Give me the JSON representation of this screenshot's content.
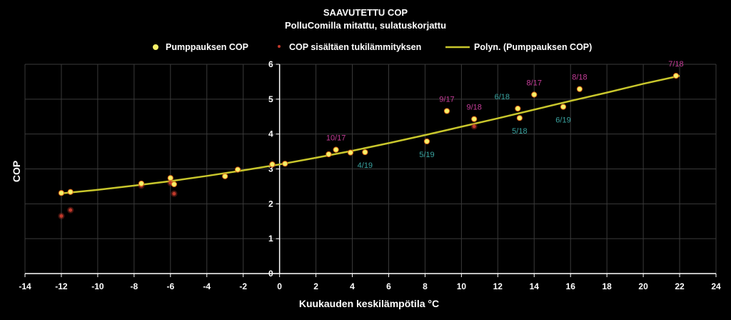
{
  "chart_data": {
    "type": "scatter",
    "title": "SAAVUTETTU COP",
    "subtitle": "PolluComilla mitattu, sulatuskorjattu",
    "xlabel": "Kuukauden keskilämpötila °C",
    "ylabel": "COP",
    "xlim": [
      -14,
      24
    ],
    "ylim": [
      0,
      6
    ],
    "x_ticks": [
      -14,
      -12,
      -10,
      -8,
      -6,
      -4,
      -2,
      0,
      2,
      4,
      6,
      8,
      10,
      12,
      14,
      16,
      18,
      20,
      22,
      24
    ],
    "y_ticks": [
      0,
      1,
      2,
      3,
      4,
      5,
      6
    ],
    "grid": "both",
    "legend_position": "top",
    "colors": {
      "background": "#000000",
      "grid": "#3a3a3a",
      "yellow": "#f5f068",
      "red": "#c0392b",
      "trend": "#c8c62c",
      "label_pink": "#c73e9a",
      "label_teal": "#3aa3a0"
    },
    "legend": {
      "pump_label": "Pumppauksen COP",
      "red_label": "COP sisältäen tukilämmityksen",
      "trend_label": "Polyn. (Pumppauksen COP)"
    },
    "series": [
      {
        "name": "Pumppauksen COP",
        "color": "#f5f068",
        "points": [
          [
            -12.0,
            2.31
          ],
          [
            -11.5,
            2.34
          ],
          [
            -7.6,
            2.58
          ],
          [
            -6.0,
            2.74
          ],
          [
            -5.8,
            2.56
          ],
          [
            -3.0,
            2.79
          ],
          [
            -2.3,
            2.98
          ],
          [
            -0.4,
            3.13
          ],
          [
            0.3,
            3.15
          ],
          [
            2.7,
            3.42
          ],
          [
            3.1,
            3.55
          ],
          [
            3.9,
            3.47
          ],
          [
            4.7,
            3.48
          ],
          [
            8.1,
            3.79
          ],
          [
            9.2,
            4.66
          ],
          [
            10.7,
            4.43
          ],
          [
            13.1,
            4.73
          ],
          [
            13.2,
            4.46
          ],
          [
            14.0,
            5.13
          ],
          [
            15.6,
            4.78
          ],
          [
            16.5,
            5.29
          ],
          [
            21.8,
            5.67
          ]
        ]
      },
      {
        "name": "COP sisältäen tukilämmityksen",
        "color": "#c0392b",
        "points": [
          [
            -12.0,
            1.65
          ],
          [
            -11.5,
            1.82
          ],
          [
            -7.6,
            2.52
          ],
          [
            -6.0,
            2.6
          ],
          [
            -5.8,
            2.29
          ],
          [
            -0.4,
            3.12
          ],
          [
            10.7,
            4.22
          ]
        ]
      }
    ],
    "trendline": {
      "name": "Polyn. (Pumppauksen COP)",
      "type": "polynomial",
      "points": [
        [
          -12,
          2.3
        ],
        [
          -10,
          2.4
        ],
        [
          -8,
          2.52
        ],
        [
          -6,
          2.65
        ],
        [
          -4,
          2.8
        ],
        [
          -2,
          2.96
        ],
        [
          0,
          3.13
        ],
        [
          2,
          3.32
        ],
        [
          4,
          3.52
        ],
        [
          6,
          3.74
        ],
        [
          8,
          3.97
        ],
        [
          10,
          4.21
        ],
        [
          12,
          4.45
        ],
        [
          14,
          4.7
        ],
        [
          16,
          4.95
        ],
        [
          18,
          5.19
        ],
        [
          20,
          5.44
        ],
        [
          22,
          5.67
        ]
      ]
    },
    "data_labels": [
      {
        "text": "10/17",
        "x": 3.1,
        "y": 3.55,
        "color": "#c73e9a",
        "pos": "above"
      },
      {
        "text": "4/19",
        "x": 4.7,
        "y": 3.48,
        "color": "#3aa3a0",
        "pos": "below"
      },
      {
        "text": "5/19",
        "x": 8.1,
        "y": 3.79,
        "color": "#3aa3a0",
        "pos": "below"
      },
      {
        "text": "9/17",
        "x": 9.2,
        "y": 4.66,
        "color": "#c73e9a",
        "pos": "above"
      },
      {
        "text": "9/18",
        "x": 10.7,
        "y": 4.43,
        "color": "#c73e9a",
        "pos": "above"
      },
      {
        "text": "6/18",
        "x": 13.1,
        "y": 4.73,
        "color": "#3aa3a0",
        "pos": "above-left"
      },
      {
        "text": "5/18",
        "x": 13.2,
        "y": 4.46,
        "color": "#3aa3a0",
        "pos": "below"
      },
      {
        "text": "8/17",
        "x": 14.0,
        "y": 5.13,
        "color": "#c73e9a",
        "pos": "above"
      },
      {
        "text": "6/19",
        "x": 15.6,
        "y": 4.78,
        "color": "#3aa3a0",
        "pos": "below"
      },
      {
        "text": "8/18",
        "x": 16.5,
        "y": 5.29,
        "color": "#c73e9a",
        "pos": "above"
      },
      {
        "text": "7/18",
        "x": 21.8,
        "y": 5.67,
        "color": "#c73e9a",
        "pos": "above"
      }
    ]
  }
}
